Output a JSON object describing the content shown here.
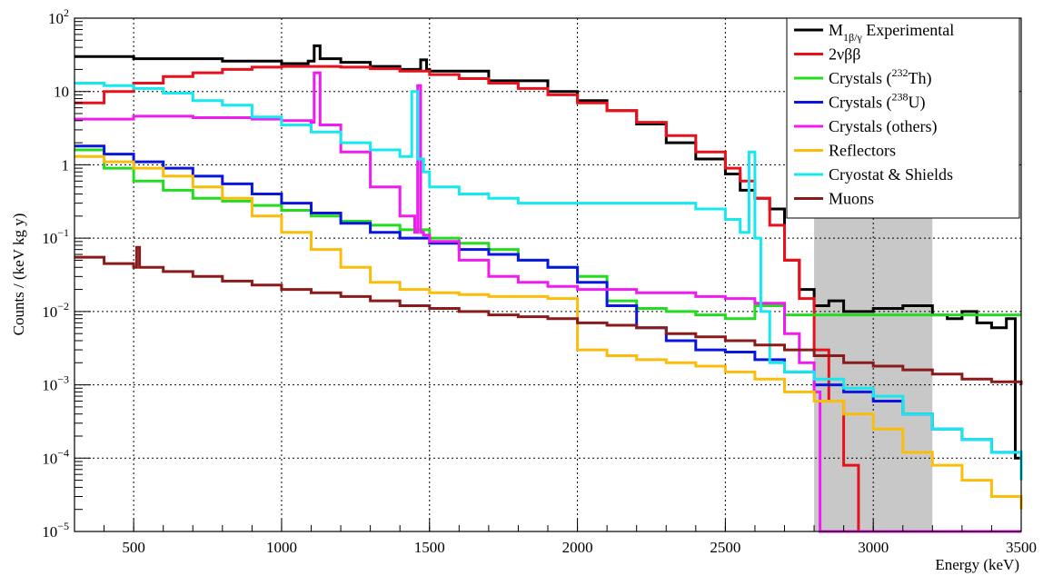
{
  "chart_data": {
    "type": "line",
    "title": "",
    "xlabel": "Energy (keV)",
    "ylabel": "Counts / (keV kg y)",
    "xlim": [
      300,
      3500
    ],
    "ylim": [
      1e-05,
      100
    ],
    "yscale": "log",
    "grid": true,
    "legend_position": "top-right",
    "x_ticks": [
      {
        "value": 500,
        "label": "500"
      },
      {
        "value": 1000,
        "label": "1000"
      },
      {
        "value": 1500,
        "label": "1500"
      },
      {
        "value": 2000,
        "label": "2000"
      },
      {
        "value": 2500,
        "label": "2500"
      },
      {
        "value": 3000,
        "label": "3000"
      },
      {
        "value": 3500,
        "label": "3500"
      }
    ],
    "y_ticks": [
      {
        "value": 100,
        "base": "10",
        "exp": "2"
      },
      {
        "value": 10,
        "base": "10",
        "exp": ""
      },
      {
        "value": 1,
        "base": "1",
        "exp": ""
      },
      {
        "value": 0.1,
        "base": "10",
        "exp": "−1"
      },
      {
        "value": 0.01,
        "base": "10",
        "exp": "−2"
      },
      {
        "value": 0.001,
        "base": "10",
        "exp": "−3"
      },
      {
        "value": 0.0001,
        "base": "10",
        "exp": "−4"
      },
      {
        "value": 1e-05,
        "base": "10",
        "exp": "−5"
      }
    ],
    "shaded_region": {
      "x_start": 2800,
      "x_end": 3200,
      "color": "#c8c8c8"
    },
    "series": [
      {
        "name": "Experimental",
        "legend": {
          "main": "M",
          "sub": "1β/γ",
          "suffix": " Experimental"
        },
        "color": "#000000",
        "x": [
          300,
          500,
          800,
          1000,
          1090,
          1110,
          1130,
          1200,
          1300,
          1400,
          1450,
          1470,
          1490,
          1500,
          1700,
          1900,
          2000,
          2100,
          2200,
          2300,
          2400,
          2500,
          2550,
          2600,
          2650,
          2700,
          2750,
          2800,
          2850,
          2900,
          3000,
          3100,
          3200,
          3250,
          3300,
          3350,
          3400,
          3450,
          3480
        ],
        "y": [
          30,
          28,
          26,
          24,
          26,
          42,
          28,
          25,
          22,
          20,
          20,
          27,
          20,
          19,
          14,
          10,
          7.5,
          5.5,
          3.6,
          2,
          1.2,
          0.75,
          0.45,
          0.35,
          0.25,
          0.05,
          0.02,
          0.012,
          0.014,
          0.01,
          0.011,
          0.012,
          0.009,
          0.008,
          0.01,
          0.007,
          0.006,
          0.008,
          0.0001
        ]
      },
      {
        "name": "2νββ",
        "legend": {
          "main": "2νββ",
          "sub": "",
          "suffix": ""
        },
        "color": "#e8111b",
        "x": [
          300,
          400,
          500,
          600,
          700,
          800,
          900,
          1000,
          1100,
          1200,
          1300,
          1400,
          1500,
          1600,
          1700,
          1800,
          1900,
          2000,
          2100,
          2200,
          2300,
          2400,
          2500,
          2550,
          2600,
          2650,
          2700,
          2750,
          2800,
          2850,
          2900,
          2950
        ],
        "y": [
          7,
          10,
          13,
          16,
          18,
          20,
          21.5,
          22,
          22,
          21.5,
          20.5,
          19,
          17,
          15,
          13,
          11,
          9,
          7,
          5.5,
          3.8,
          2.5,
          1.5,
          0.9,
          0.6,
          0.35,
          0.15,
          0.05,
          0.015,
          0.003,
          0.0006,
          8e-05,
          1e-05
        ]
      },
      {
        "name": "Crystals (232Th)",
        "legend": {
          "main": "Crystals (",
          "sup": "232",
          "suffix": "Th)"
        },
        "color": "#23dc1f",
        "x": [
          300,
          400,
          500,
          600,
          700,
          800,
          900,
          1000,
          1100,
          1200,
          1300,
          1400,
          1500,
          1600,
          1700,
          1800,
          1900,
          2000,
          2100,
          2200,
          2300,
          2400,
          2500,
          2600,
          2700,
          2800,
          2900,
          3000,
          3100,
          3200,
          3300,
          3400,
          3500
        ],
        "y": [
          1.6,
          0.9,
          0.6,
          0.45,
          0.35,
          0.32,
          0.28,
          0.24,
          0.2,
          0.17,
          0.15,
          0.13,
          0.1,
          0.085,
          0.07,
          0.05,
          0.04,
          0.03,
          0.014,
          0.011,
          0.01,
          0.009,
          0.008,
          0.012,
          0.009,
          0.009,
          0.009,
          0.009,
          0.009,
          0.009,
          0.009,
          0.009,
          0.009
        ]
      },
      {
        "name": "Crystals (238U)",
        "legend": {
          "main": "Crystals (",
          "sup": "238",
          "suffix": "U)"
        },
        "color": "#0a16de",
        "x": [
          300,
          400,
          500,
          600,
          700,
          800,
          900,
          1000,
          1100,
          1200,
          1300,
          1400,
          1500,
          1600,
          1700,
          1800,
          1900,
          2000,
          2100,
          2200,
          2300,
          2400,
          2500,
          2600,
          2700,
          2800,
          2900,
          3000,
          3100,
          3200,
          3300,
          3400,
          3500
        ],
        "y": [
          1.8,
          1.4,
          1.1,
          0.9,
          0.7,
          0.55,
          0.4,
          0.3,
          0.22,
          0.16,
          0.12,
          0.1,
          0.085,
          0.07,
          0.06,
          0.05,
          0.04,
          0.025,
          0.012,
          0.006,
          0.004,
          0.003,
          0.0028,
          0.0022,
          0.0015,
          0.001,
          0.0008,
          0.0006,
          0.0004,
          0.00025,
          0.00018,
          0.00012,
          8e-05
        ]
      },
      {
        "name": "Crystals (others)",
        "legend": {
          "main": "Crystals (others)",
          "sub": "",
          "suffix": ""
        },
        "color": "#ef1cef",
        "x": [
          300,
          500,
          700,
          900,
          1000,
          1100,
          1110,
          1130,
          1200,
          1300,
          1400,
          1450,
          1460,
          1470,
          1480,
          1500,
          1600,
          1700,
          1800,
          1900,
          2000,
          2200,
          2400,
          2500,
          2600,
          2700,
          2750,
          2800,
          2820,
          2900,
          3000,
          3500
        ],
        "y": [
          4.2,
          4.6,
          4.4,
          4.2,
          4,
          3.8,
          18,
          3.5,
          1.5,
          0.5,
          0.2,
          0.12,
          12,
          0.12,
          0.11,
          0.09,
          0.05,
          0.03,
          0.025,
          0.022,
          0.02,
          0.018,
          0.016,
          0.015,
          0.013,
          0.005,
          0.002,
          0.0008,
          1e-05,
          1e-05,
          1e-05,
          1e-05
        ]
      },
      {
        "name": "Reflectors",
        "legend": {
          "main": "Reflectors",
          "sub": "",
          "suffix": ""
        },
        "color": "#fbbd0b",
        "x": [
          300,
          400,
          500,
          600,
          700,
          800,
          900,
          1000,
          1100,
          1200,
          1300,
          1400,
          1500,
          1600,
          1700,
          1800,
          1900,
          1990,
          2000,
          2100,
          2200,
          2300,
          2400,
          2500,
          2600,
          2700,
          2800,
          2900,
          3000,
          3100,
          3200,
          3300,
          3400,
          3500
        ],
        "y": [
          1.3,
          1.1,
          0.9,
          0.7,
          0.5,
          0.35,
          0.2,
          0.12,
          0.07,
          0.04,
          0.025,
          0.02,
          0.018,
          0.017,
          0.016,
          0.016,
          0.015,
          0.015,
          0.003,
          0.0025,
          0.0022,
          0.002,
          0.0018,
          0.0015,
          0.0012,
          0.0008,
          0.0006,
          0.0004,
          0.00025,
          0.00012,
          8e-05,
          5e-05,
          3e-05,
          2e-05
        ]
      },
      {
        "name": "Cryostat & Shields",
        "legend": {
          "main": "Cryostat & Shields",
          "sub": "",
          "suffix": ""
        },
        "color": "#16e8ef",
        "x": [
          300,
          400,
          500,
          600,
          700,
          800,
          900,
          1000,
          1100,
          1200,
          1300,
          1400,
          1440,
          1460,
          1480,
          1500,
          1600,
          1700,
          1800,
          1900,
          2000,
          2100,
          2200,
          2300,
          2400,
          2500,
          2550,
          2580,
          2600,
          2620,
          2650,
          2700,
          2800,
          2900,
          3000,
          3100,
          3200,
          3300,
          3400,
          3500
        ],
        "y": [
          13,
          12,
          11,
          9.5,
          7.5,
          6.5,
          4.5,
          3.5,
          2.8,
          2,
          1.6,
          1.3,
          10,
          1.2,
          0.8,
          0.5,
          0.4,
          0.35,
          0.3,
          0.3,
          0.3,
          0.3,
          0.3,
          0.3,
          0.25,
          0.18,
          0.12,
          1.5,
          0.1,
          0.01,
          0.002,
          0.0015,
          0.0012,
          0.0009,
          0.0007,
          0.0004,
          0.00025,
          0.00018,
          0.00012,
          5e-05
        ]
      },
      {
        "name": "Muons",
        "legend": {
          "main": "Muons",
          "sub": "",
          "suffix": ""
        },
        "color": "#8b1a1a",
        "x": [
          300,
          400,
          500,
          510,
          520,
          600,
          700,
          800,
          900,
          1000,
          1100,
          1200,
          1300,
          1400,
          1500,
          1600,
          1700,
          1800,
          1900,
          2000,
          2100,
          2200,
          2300,
          2400,
          2500,
          2600,
          2700,
          2800,
          2900,
          3000,
          3100,
          3200,
          3300,
          3400,
          3500
        ],
        "y": [
          0.055,
          0.045,
          0.04,
          0.075,
          0.04,
          0.035,
          0.03,
          0.026,
          0.023,
          0.02,
          0.018,
          0.016,
          0.014,
          0.012,
          0.011,
          0.01,
          0.009,
          0.0085,
          0.008,
          0.007,
          0.0065,
          0.006,
          0.005,
          0.0045,
          0.004,
          0.0035,
          0.003,
          0.0025,
          0.002,
          0.0018,
          0.0016,
          0.0014,
          0.0012,
          0.0011,
          0.001
        ]
      }
    ]
  }
}
